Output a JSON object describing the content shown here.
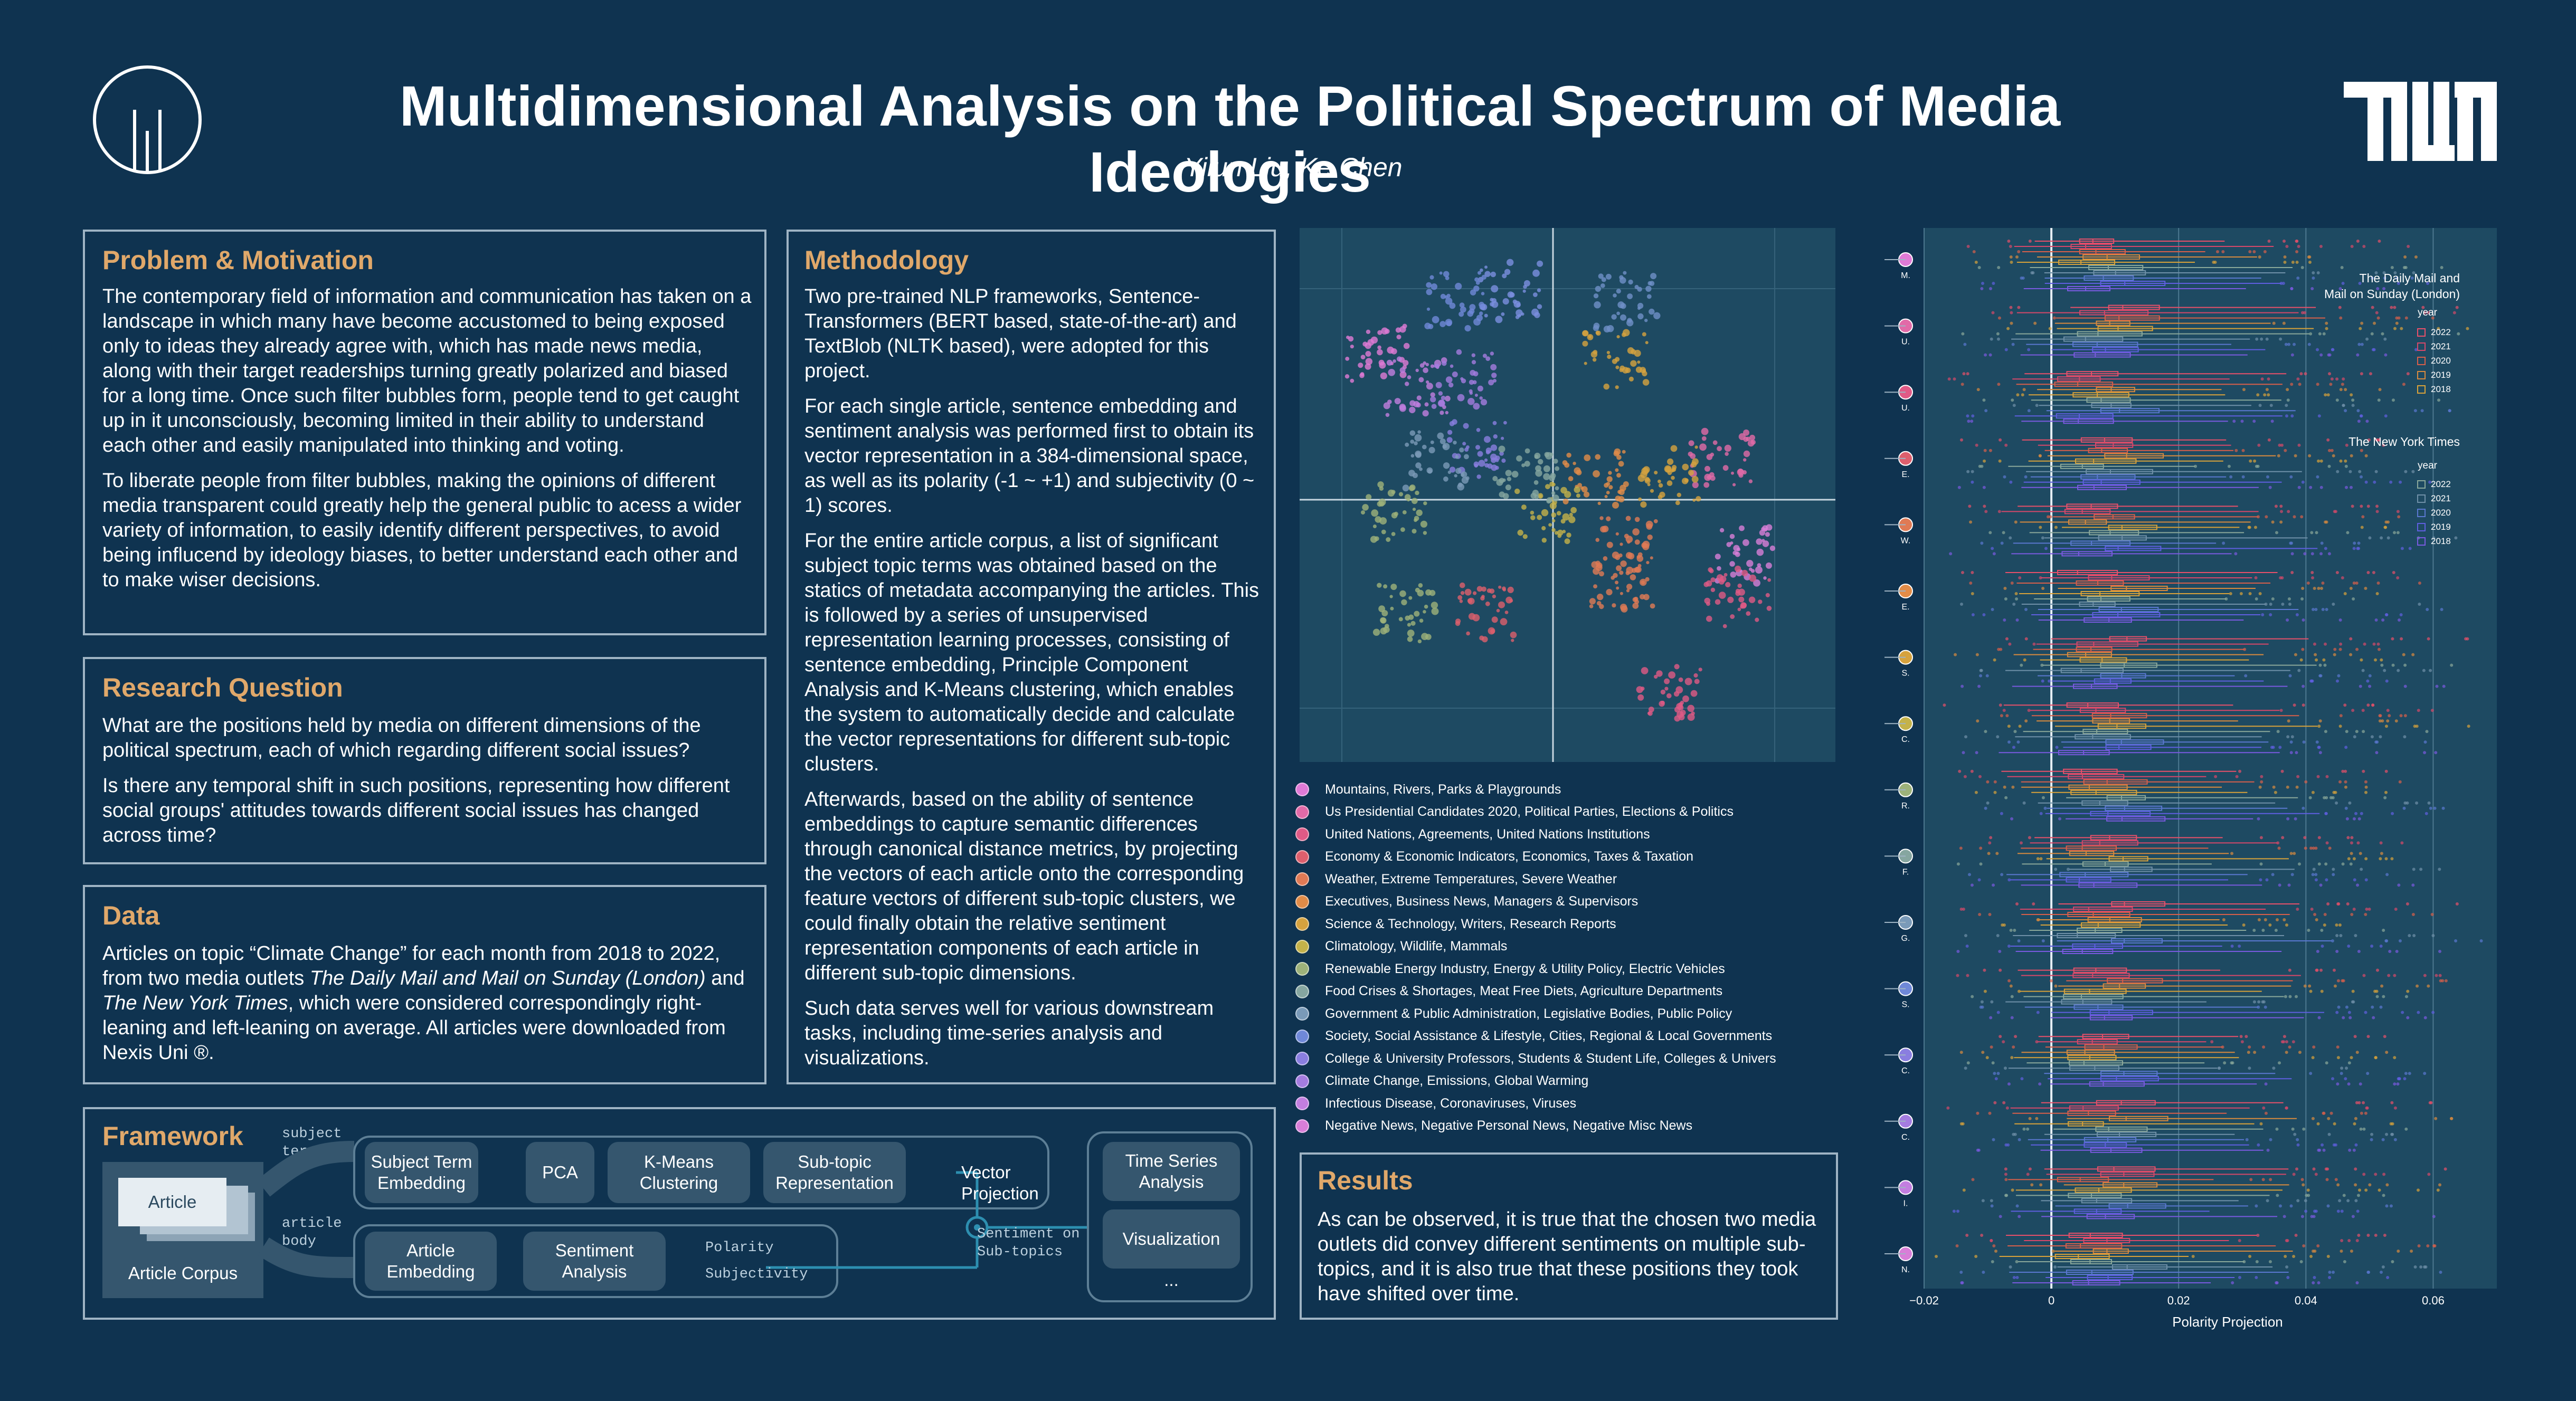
{
  "header": {
    "title": "Multidimensional Analysis on the Political Spectrum of Media Ideologies",
    "authors": "Yilun Liu, Ke Chen",
    "logo_text": "TUM"
  },
  "problem": {
    "title": "Problem & Motivation",
    "p1": "The contemporary field of information and communication has taken on a landscape in which many have become accustomed to being exposed only to ideas they already agree with, which has made news media, along with their target readerships turning greatly polarized and biased for a long time. Once such filter bubbles form, people tend to get caught up in it unconsciously, becoming limited in their ability to understand each other and easily manipulated into thinking and voting.",
    "p2": "To liberate people from filter bubbles, making the opinions of different media transparent could greatly help the general public to acess a wider variety of information, to easily identify different perspectives, to avoid being influcend by ideology biases, to better understand each other and to make wiser decisions."
  },
  "research": {
    "title": "Research Question",
    "p1": "What are the positions held by media on different dimensions of the political spectrum, each of which regarding different social issues?",
    "p2": "Is there any temporal shift in such positions, representing how different social groups' attitudes towards different social issues has changed across time?"
  },
  "data_panel": {
    "title": "Data",
    "t1": "Articles on topic “Climate Change” for each month from 2018 to 2022, from two media outlets ",
    "t2": "The Daily Mail and Mail on Sunday (London)",
    "t3": " and ",
    "t4": "The New York Times",
    "t5": ", which were considered correspondingly right-leaning and left-leaning on average. All articles were downloaded from Nexis Uni ®."
  },
  "methodology": {
    "title": "Methodology",
    "p1": "Two pre-trained NLP frameworks, Sentence-Transformers (BERT based, state-of-the-art) and TextBlob (NLTK based), were adopted for this project.",
    "p2": "For each single article, sentence embedding and sentiment analysis was performed first to obtain its vector representation in a 384-dimensional space, as well as its polarity (-1 ~ +1) and subjectivity (0 ~ 1) scores.",
    "p3": "For the entire article corpus, a list of significant subject topic terms was obtained based on the statics of metadata accompanying the articles. This is followed by a series of unsupervised representation learning processes, consisting of sentence embedding, Principle Component Analysis and K-Means clustering, which enables the system to automatically decide and calculate the vector representations for different sub-topic clusters.",
    "p4": "Afterwards, based on the ability of sentence embeddings to capture semantic differences through canonical distance metrics, by projecting the vectors of each article onto the corresponding feature vectors of different sub-topic clusters, we could finally obtain the relative sentiment representation components of each article in different sub-topic dimensions.",
    "p5": "Such data serves well for various downstream tasks, including time-series analysis and visualizations."
  },
  "framework": {
    "title": "Framework",
    "article": "Article",
    "corpus": "Article Corpus",
    "subject_terms": "subject\nterms",
    "article_body": "article\nbody",
    "subject_term_embedding": "Subject Term\nEmbedding",
    "pca": "PCA",
    "kmeans": "K-Means\nClustering",
    "subtopic_rep": "Sub-topic\nRepresentation",
    "article_embedding": "Article\nEmbedding",
    "sentiment_analysis": "Sentiment\nAnalysis",
    "polarity": "Polarity",
    "subjectivity": "Subjectivity",
    "vector_projection": "Vector\nProjection",
    "sentiment_on": "Sentiment on\nSub-topics",
    "time_series": "Time Series\nAnalysis",
    "visualization": "Visualization",
    "ellipsis": "..."
  },
  "results": {
    "title": "Results",
    "text": "As can be observed, it is true that the chosen two media outlets did convey different sentiments on multiple sub-topics, and it is also true that these positions they took have shifted over time."
  },
  "topics": [
    {
      "label": "Mountains, Rivers, Parks & Playgrounds",
      "short": "M.",
      "color": "#e07ad6"
    },
    {
      "label": "Us Presidential Candidates 2020, Political Parties, Elections & Politics",
      "short": "U.",
      "color": "#e26aa8"
    },
    {
      "label": "United Nations, Agreements, United Nations Institutions",
      "short": "U.",
      "color": "#e05a86"
    },
    {
      "label": "Economy & Economic Indicators, Economics, Taxes & Taxation",
      "short": "E.",
      "color": "#dd5f6d"
    },
    {
      "label": "Weather, Extreme Temperatures, Severe Weather",
      "short": "W.",
      "color": "#e07a55"
    },
    {
      "label": "Executives, Business News, Managers & Supervisors",
      "short": "E.",
      "color": "#e28c48"
    },
    {
      "label": "Science & Technology, Writers, Research Reports",
      "short": "S.",
      "color": "#d6a23e"
    },
    {
      "label": "Climatology, Wildlife, Mammals",
      "short": "C.",
      "color": "#c4b24a"
    },
    {
      "label": "Renewable Energy Industry, Energy & Utility Policy, Electric Vehicles",
      "short": "R.",
      "color": "#9db27a"
    },
    {
      "label": "Food Crises & Shortages, Meat Free Diets, Agriculture Departments",
      "short": "F.",
      "color": "#86a6a0"
    },
    {
      "label": "Government & Public Administration, Legislative Bodies, Public Policy",
      "short": "G.",
      "color": "#7a9ab8"
    },
    {
      "label": "Society, Social Assistance & Lifestyle, Cities, Regional & Local Governments",
      "short": "S.",
      "color": "#6f88d8"
    },
    {
      "label": "College & University Professors, Students & Student Life, Colleges & Univers",
      "short": "C.",
      "color": "#8a7ee0"
    },
    {
      "label": "Climate Change, Emissions, Global Warming",
      "short": "C.",
      "color": "#a47ce0"
    },
    {
      "label": "Infectious Disease, Coronaviruses, Viruses",
      "short": "I.",
      "color": "#c27ee0"
    },
    {
      "label": "Negative News, Negative Personal News, Negative Misc News",
      "short": "N.",
      "color": "#d87ed8"
    }
  ],
  "chart_data": {
    "type": "box",
    "xlabel": "Polarity Projection",
    "xlim": [
      -0.02,
      0.07
    ],
    "xticks": [
      "−0.02",
      "0",
      "0.02",
      "0.04",
      "0.06"
    ],
    "legend_dm": {
      "title": "The Daily Mail and\nMail on Sunday (London)",
      "year_title": "year",
      "years": [
        "2022",
        "2021",
        "2020",
        "2019",
        "2018"
      ],
      "colors": [
        "#e8506a",
        "#d6486a",
        "#d85f4a",
        "#d88a3e",
        "#d8a23a"
      ]
    },
    "legend_nyt": {
      "title": "The New York Times",
      "year_title": "year",
      "years": [
        "2022",
        "2021",
        "2020",
        "2019",
        "2018"
      ],
      "colors": [
        "#8aa89a",
        "#6f90a8",
        "#5a78d0",
        "#5f5fe0",
        "#7a5ae0"
      ]
    }
  }
}
